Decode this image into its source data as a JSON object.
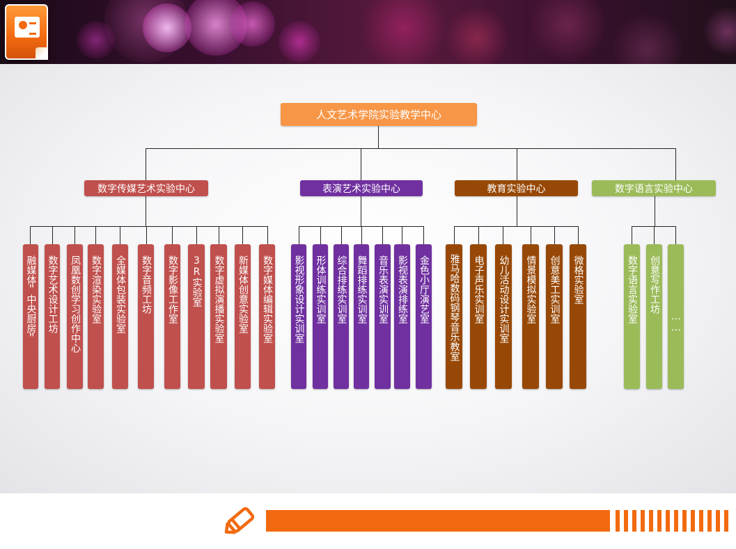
{
  "colors": {
    "root": "#f79646",
    "media": "#c0504d",
    "performance": "#7030a0",
    "education": "#984806",
    "language": "#9bbb59",
    "accent": "#f26a10"
  },
  "icons": {
    "app_logo": "presentation-icon",
    "footer": "pencil-icon"
  },
  "root": {
    "label": "人文艺术学院实验教学中心"
  },
  "groups": [
    {
      "label": "数字传媒艺术实验中心",
      "children": [
        "融媒体＂中央厨房＂",
        "数字艺术设计工坊",
        "凤凰数创学习创作中心",
        "数字渲染实验室",
        "全媒体包装实验室",
        "数字音频工坊",
        "数字影像工作室",
        "3R实验室",
        "数字虚拟演播实验室",
        "新媒体创意实验室",
        "数字媒体编辑实验室"
      ]
    },
    {
      "label": "表演艺术实验中心",
      "children": [
        "影视形象设计实训室",
        "形体训练实训室",
        "综合排练实训室",
        "舞蹈排练实训室",
        "音乐表演实训室",
        "影视表演排练室",
        "金色小厅演艺室"
      ]
    },
    {
      "label": "教育实验中心",
      "children": [
        "雅马哈数码钢琴音乐教室",
        "电子声乐实训室",
        "幼儿活动设计实训室",
        "情景模拟实验室",
        "创意美工实训室",
        "微格实验室"
      ]
    },
    {
      "label": "数字语言实验中心",
      "children": [
        "数字语言实验室",
        "创意写作工坊",
        "……"
      ]
    }
  ]
}
